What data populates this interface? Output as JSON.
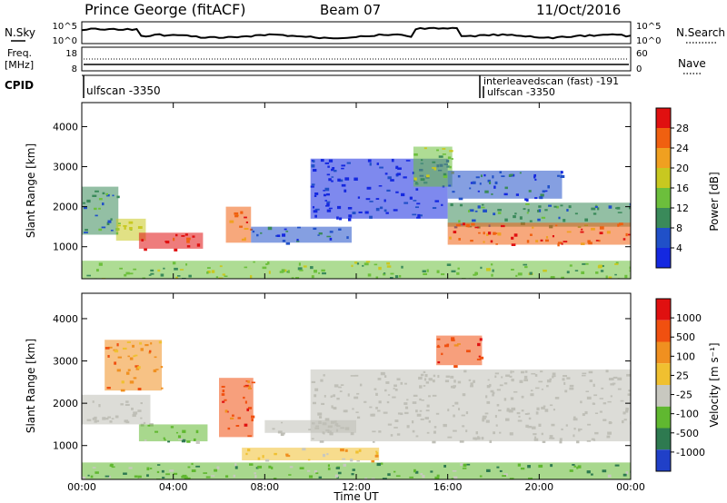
{
  "header": {
    "station": "Prince George (fitACF)",
    "beam": "Beam 07",
    "date": "11/Oct/2016"
  },
  "strip_labels": {
    "nsky": "N.Sky",
    "nsearch": "N.Search",
    "freq_line1": "Freq.",
    "freq_line2": "[MHz]",
    "nave": "Nave",
    "cpid": "CPID"
  },
  "colors": {
    "power": [
      "#1428e0",
      "#2050c8",
      "#3a8a5a",
      "#6cbf3c",
      "#c8c820",
      "#f0a020",
      "#f06010",
      "#e01010"
    ],
    "velocity": [
      "#2040c8",
      "#2e7a50",
      "#60b830",
      "#c8c8c0",
      "#f0c030",
      "#f09020",
      "#f05010",
      "#e01010"
    ],
    "ground_scatter": "#bfbfb7"
  },
  "chart_data": {
    "type": "heatmap",
    "x_axis": {
      "label": "Time UT",
      "range": [
        "00:00",
        "24:00"
      ],
      "ticks": [
        "00:00",
        "04:00",
        "08:00",
        "12:00",
        "16:00",
        "20:00",
        "00:00"
      ]
    },
    "y_axis": {
      "label": "Slant Range [km]",
      "range": [
        200,
        4600
      ],
      "ticks": [
        "1000",
        "2000",
        "3000",
        "4000"
      ]
    },
    "nsky_axis": {
      "ticks": [
        "10^5",
        "10^0"
      ]
    },
    "nsearch_axis": {
      "ticks": [
        "10^5",
        "10^0"
      ]
    },
    "freq_axis": {
      "ticks": [
        "18",
        "8"
      ]
    },
    "nave_axis": {
      "ticks": [
        "60",
        "0"
      ]
    },
    "cpid_segments": [
      {
        "label": "ulfscan -3350",
        "start": "00:00"
      },
      {
        "label": "interleavedscan (fast) -191",
        "start": "17:30"
      },
      {
        "label": "ulfscan -3350",
        "start": "17:35"
      }
    ],
    "power_scale": {
      "title": "Power [dB]",
      "ticks": [
        "28",
        "24",
        "20",
        "16",
        "12",
        "8",
        "4"
      ]
    },
    "velocity_scale": {
      "title": "Velocity [m s⁻¹]",
      "ticks": [
        "1000",
        "500",
        "100",
        "25",
        "-25",
        "-100",
        "-500",
        "-1000"
      ]
    },
    "power_regions": [
      {
        "t0": 0.0,
        "t1": 1.6,
        "r0": 1300,
        "r1": 2500,
        "level": 2
      },
      {
        "t0": 1.5,
        "t1": 2.8,
        "r0": 1150,
        "r1": 1700,
        "level": 4
      },
      {
        "t0": 2.5,
        "t1": 5.3,
        "r0": 950,
        "r1": 1350,
        "level": 7
      },
      {
        "t0": 6.3,
        "t1": 7.4,
        "r0": 1100,
        "r1": 2000,
        "level": 6
      },
      {
        "t0": 7.4,
        "t1": 11.8,
        "r0": 1100,
        "r1": 1500,
        "level": 1
      },
      {
        "t0": 10.0,
        "t1": 16.0,
        "r0": 1700,
        "r1": 3200,
        "level": 0
      },
      {
        "t0": 14.5,
        "t1": 16.2,
        "r0": 2500,
        "r1": 3500,
        "level": 3
      },
      {
        "t0": 16.0,
        "t1": 24.0,
        "r0": 1500,
        "r1": 2100,
        "level": 2
      },
      {
        "t0": 16.0,
        "t1": 24.0,
        "r0": 1050,
        "r1": 1600,
        "level": 6
      },
      {
        "t0": 16.0,
        "t1": 21.0,
        "r0": 2200,
        "r1": 2900,
        "level": 1
      },
      {
        "t0": 0.0,
        "t1": 24.0,
        "r0": 200,
        "r1": 650,
        "level": 3
      }
    ],
    "velocity_regions": [
      {
        "t0": 0.0,
        "t1": 3.0,
        "r0": 1500,
        "r1": 2200,
        "level": 3
      },
      {
        "t0": 1.0,
        "t1": 3.5,
        "r0": 2300,
        "r1": 3500,
        "level": 5
      },
      {
        "t0": 2.5,
        "t1": 5.5,
        "r0": 1100,
        "r1": 1500,
        "level": 2
      },
      {
        "t0": 6.0,
        "t1": 7.5,
        "r0": 1200,
        "r1": 2600,
        "level": 6
      },
      {
        "t0": 7.0,
        "t1": 13.0,
        "r0": 650,
        "r1": 950,
        "level": 4
      },
      {
        "t0": 8.0,
        "t1": 12.0,
        "r0": 1300,
        "r1": 1600,
        "level": 3
      },
      {
        "t0": 10.0,
        "t1": 24.0,
        "r0": 1100,
        "r1": 2800,
        "level": 3
      },
      {
        "t0": 15.5,
        "t1": 17.5,
        "r0": 2900,
        "r1": 3600,
        "level": 6
      },
      {
        "t0": 0.0,
        "t1": 24.0,
        "r0": 200,
        "r1": 600,
        "level": 2
      }
    ]
  }
}
